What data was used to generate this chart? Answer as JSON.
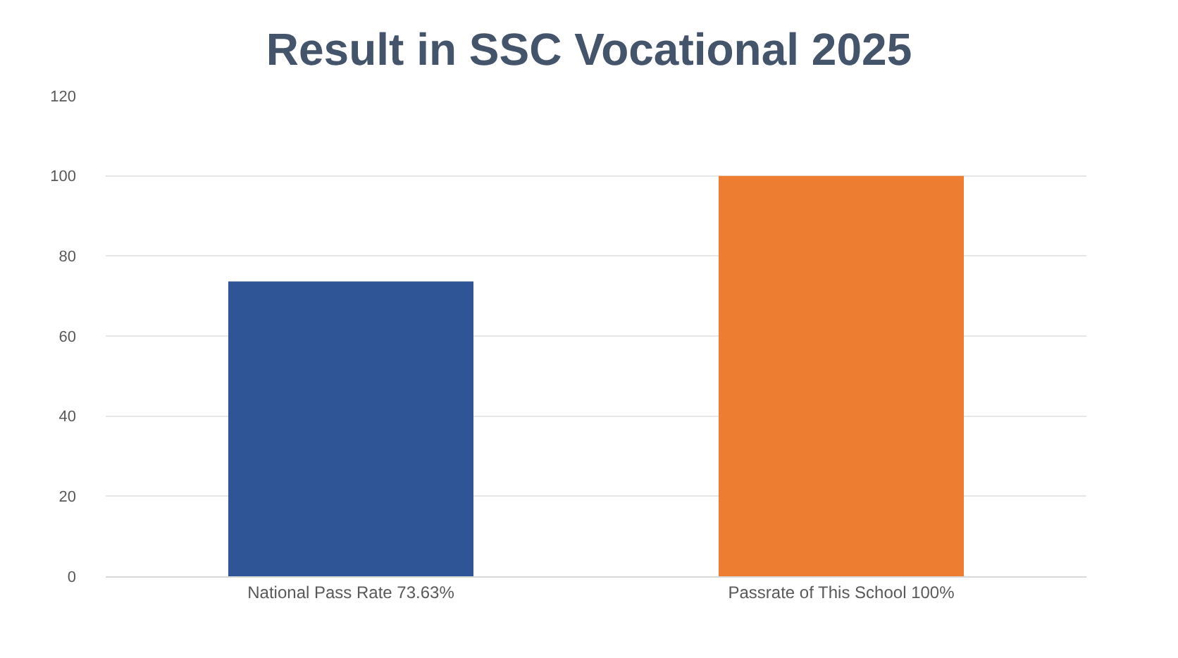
{
  "chart_data": {
    "type": "bar",
    "title": "Result in SSC Vocational 2025",
    "categories": [
      "National Pass Rate 73.63%",
      "Passrate of This School 100%"
    ],
    "values": [
      73.63,
      100
    ],
    "colors": [
      "#2f5597",
      "#ed7d31"
    ],
    "ylim": [
      0,
      120
    ],
    "yticks": [
      0,
      20,
      40,
      60,
      80,
      100,
      120
    ],
    "grid": "y",
    "legend": false
  }
}
